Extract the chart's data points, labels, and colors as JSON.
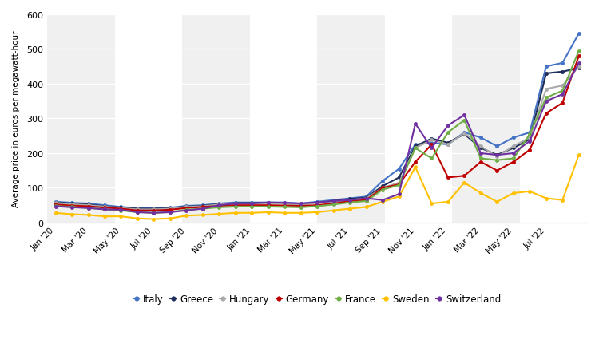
{
  "ylabel": "Average price in euros per megawatt-hour",
  "ylim": [
    0,
    600
  ],
  "yticks": [
    0,
    100,
    200,
    300,
    400,
    500,
    600
  ],
  "x_labels": [
    "Jan '20",
    "Mar '20",
    "May '20",
    "Jul '20",
    "Sep '20",
    "Nov '20",
    "Jan '21",
    "Mar '21",
    "May '21",
    "Jul '21",
    "Sep '21",
    "Nov '21",
    "Jan '22",
    "Mar '22",
    "May '22",
    "Jul '22"
  ],
  "x_label_indices": [
    0,
    2,
    4,
    6,
    8,
    10,
    12,
    14,
    16,
    18,
    20,
    22,
    24,
    26,
    28,
    30
  ],
  "background_color": "#ffffff",
  "plot_background": "#ffffff",
  "grid_color": "#e0e0e0",
  "series": {
    "Italy": {
      "color": "#4472c4",
      "values": [
        60,
        57,
        55,
        50,
        45,
        42,
        42,
        43,
        48,
        50,
        55,
        58,
        58,
        58,
        58,
        55,
        60,
        65,
        70,
        75,
        120,
        155,
        225,
        230,
        225,
        260,
        245,
        220,
        245,
        260,
        450,
        460,
        545
      ]
    },
    "Greece": {
      "color": "#1f2d5a",
      "values": [
        58,
        55,
        52,
        47,
        43,
        40,
        40,
        41,
        46,
        48,
        53,
        56,
        56,
        56,
        55,
        53,
        57,
        62,
        68,
        72,
        105,
        130,
        220,
        242,
        230,
        255,
        215,
        195,
        215,
        240,
        430,
        435,
        445
      ]
    },
    "Hungary": {
      "color": "#aaaaaa",
      "values": [
        57,
        53,
        50,
        46,
        42,
        38,
        38,
        40,
        45,
        47,
        52,
        55,
        55,
        55,
        54,
        52,
        56,
        60,
        65,
        70,
        100,
        115,
        215,
        238,
        225,
        258,
        220,
        190,
        220,
        245,
        385,
        395,
        450
      ]
    },
    "Germany": {
      "color": "#c00000",
      "values": [
        52,
        49,
        47,
        43,
        40,
        35,
        35,
        37,
        42,
        45,
        48,
        50,
        50,
        50,
        49,
        48,
        50,
        55,
        62,
        65,
        100,
        110,
        175,
        225,
        130,
        135,
        175,
        150,
        175,
        210,
        315,
        345,
        480
      ]
    },
    "France": {
      "color": "#70ad47",
      "values": [
        48,
        45,
        42,
        38,
        35,
        30,
        28,
        30,
        37,
        40,
        44,
        46,
        46,
        46,
        45,
        44,
        47,
        52,
        58,
        62,
        95,
        108,
        215,
        185,
        260,
        295,
        185,
        180,
        185,
        255,
        360,
        380,
        495
      ]
    },
    "Sweden": {
      "color": "#ffc000",
      "values": [
        28,
        24,
        22,
        18,
        18,
        12,
        10,
        12,
        20,
        22,
        25,
        28,
        28,
        30,
        28,
        28,
        30,
        35,
        40,
        45,
        60,
        75,
        160,
        55,
        60,
        115,
        85,
        60,
        85,
        90,
        70,
        65,
        195
      ]
    },
    "Switzerland": {
      "color": "#7030a0",
      "values": [
        47,
        44,
        42,
        38,
        37,
        30,
        28,
        30,
        35,
        40,
        50,
        55,
        55,
        58,
        57,
        55,
        58,
        62,
        65,
        70,
        65,
        82,
        285,
        215,
        280,
        310,
        200,
        195,
        200,
        235,
        350,
        370,
        460
      ]
    }
  },
  "legend_order": [
    "Italy",
    "Greece",
    "Hungary",
    "Germany",
    "France",
    "Sweden",
    "Switzerland"
  ],
  "marker": "o",
  "markersize": 3,
  "linewidth": 1.5
}
